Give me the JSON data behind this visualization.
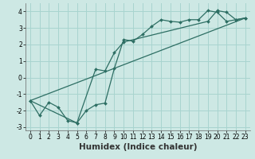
{
  "title": "",
  "xlabel": "Humidex (Indice chaleur)",
  "xlim": [
    -0.5,
    23.5
  ],
  "ylim": [
    -3.2,
    4.5
  ],
  "yticks": [
    -3,
    -2,
    -1,
    0,
    1,
    2,
    3,
    4
  ],
  "xticks": [
    0,
    1,
    2,
    3,
    4,
    5,
    6,
    7,
    8,
    9,
    10,
    11,
    12,
    13,
    14,
    15,
    16,
    17,
    18,
    19,
    20,
    21,
    22,
    23
  ],
  "bg_color": "#cde8e4",
  "grid_color": "#a8d4cf",
  "line_color": "#2d6e63",
  "line1_x": [
    0,
    1,
    2,
    3,
    4,
    5,
    6,
    7,
    8,
    9,
    10,
    11,
    12,
    13,
    14,
    15,
    16,
    17,
    18,
    19,
    20,
    21,
    22,
    23
  ],
  "line1_y": [
    -1.4,
    -2.3,
    -1.5,
    -1.8,
    -2.6,
    -2.75,
    -2.0,
    -1.65,
    -1.55,
    0.55,
    2.3,
    2.2,
    2.6,
    3.1,
    3.5,
    3.4,
    3.35,
    3.5,
    3.5,
    4.05,
    3.95,
    3.4,
    3.5,
    3.6
  ],
  "line2_x": [
    0,
    5,
    7,
    8,
    9,
    10,
    19,
    20,
    21,
    22,
    23
  ],
  "line2_y": [
    -1.4,
    -2.75,
    0.5,
    0.4,
    1.5,
    2.15,
    3.4,
    4.05,
    3.95,
    3.5,
    3.6
  ],
  "line3_x": [
    0,
    23
  ],
  "line3_y": [
    -1.4,
    3.6
  ],
  "fontsize_tick": 5.5,
  "fontsize_label": 7.5
}
